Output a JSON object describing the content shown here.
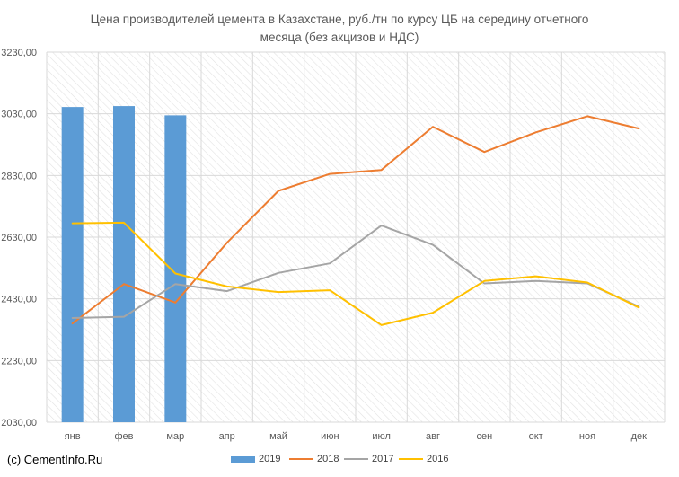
{
  "chart_data": {
    "type": "bar",
    "title": [
      "Цена производителей цемента в Казахстане, руб./тн по курсу ЦБ на середину отчетного",
      "месяца (без акцизов и НДС)"
    ],
    "categories": [
      "янв",
      "фев",
      "мар",
      "апр",
      "май",
      "июн",
      "июл",
      "авг",
      "сен",
      "окт",
      "ноя",
      "дек"
    ],
    "yticks": [
      "2030,00",
      "2230,00",
      "2430,00",
      "2630,00",
      "2830,00",
      "3030,00",
      "3230,00"
    ],
    "ylim": [
      2030,
      3230
    ],
    "series": [
      {
        "name": "2019",
        "kind": "bar",
        "color": "#5b9bd5",
        "values": [
          3052,
          3055,
          3025,
          null,
          null,
          null,
          null,
          null,
          null,
          null,
          null,
          null
        ]
      },
      {
        "name": "2018",
        "kind": "line",
        "color": "#ed7d31",
        "values": [
          2350,
          2478,
          2418,
          2612,
          2780,
          2835,
          2848,
          2988,
          2906,
          2970,
          3022,
          2982
        ]
      },
      {
        "name": "2017",
        "kind": "line",
        "color": "#a5a5a5",
        "values": [
          2368,
          2372,
          2478,
          2455,
          2514,
          2545,
          2668,
          2605,
          2480,
          2488,
          2480,
          2405
        ]
      },
      {
        "name": "2016",
        "kind": "line",
        "color": "#ffc000",
        "values": [
          2675,
          2677,
          2512,
          2470,
          2452,
          2458,
          2345,
          2385,
          2488,
          2503,
          2483,
          2402
        ]
      }
    ],
    "grid": true,
    "legend": "bottom"
  },
  "footer": {
    "credit": "(c) CementInfo.Ru"
  }
}
